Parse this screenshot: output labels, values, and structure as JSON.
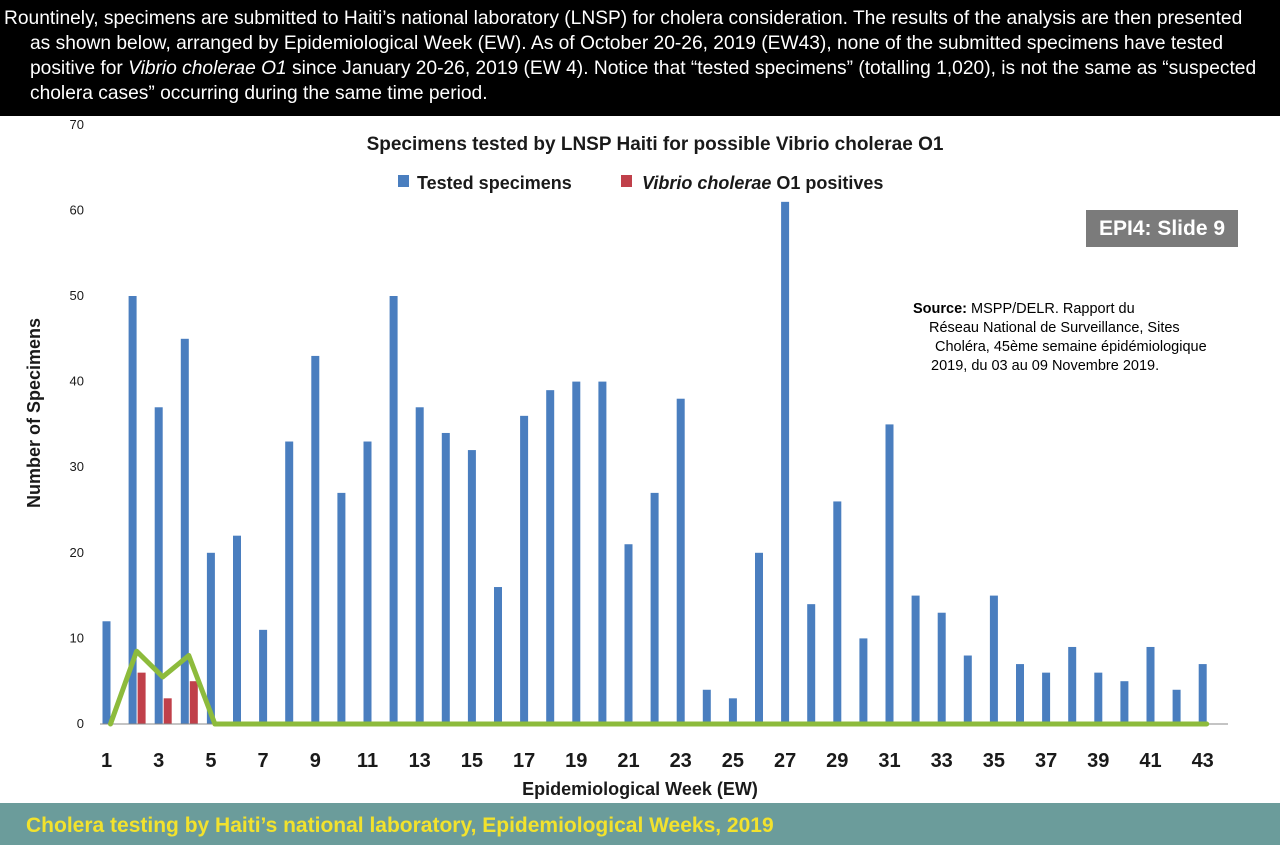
{
  "intro": {
    "part1": "Rountinely, specimens are submitted to Haiti’s national laboratory (LNSP) for cholera consideration. The results of the analysis are then presented as shown below, arranged by Epidemiological Week (EW). As of October 20-26, 2019 (EW43), none of the submitted specimens have tested positive for ",
    "organism": "Vibrio cholerae O1",
    "part2": " since January 20-26, 2019 (EW 4). Notice that “tested specimens” (totalling 1,020), is not the same as “suspected cholera cases” occurring during the same time period."
  },
  "badge": "EPI4: Slide 9",
  "source": {
    "label": "Source:",
    "line1": " MSPP/DELR. Rapport du",
    "line2": "Réseau National de Surveillance, Sites",
    "line3": "Choléra, 45ème semaine épidémiologique",
    "line4": "2019, du 03 au 09 Novembre 2019."
  },
  "footer": "Cholera testing by Haiti’s national laboratory, Epidemiological Weeks, 2019",
  "colors": {
    "tested": "#4a7ebf",
    "positive": "#c0404a",
    "trend": "#8dbb3c",
    "footer_bg": "#6b9c9b",
    "footer_text": "#f2e22d"
  },
  "chart_data": {
    "type": "bar",
    "title": "Specimens tested by LNSP Haiti for possible Vibrio cholerae O1",
    "xlabel": "Epidemiological Week (EW)",
    "ylabel": "Number of Specimens",
    "ylim": [
      0,
      70
    ],
    "yticks": [
      0,
      10,
      20,
      30,
      40,
      50,
      60,
      70
    ],
    "categories": [
      1,
      2,
      3,
      4,
      5,
      6,
      7,
      8,
      9,
      10,
      11,
      12,
      13,
      14,
      15,
      16,
      17,
      18,
      19,
      20,
      21,
      22,
      23,
      24,
      25,
      26,
      27,
      28,
      29,
      30,
      31,
      32,
      33,
      34,
      35,
      36,
      37,
      38,
      39,
      40,
      41,
      42,
      43
    ],
    "xtick_labels": [
      "1",
      "3",
      "5",
      "7",
      "9",
      "11",
      "13",
      "15",
      "17",
      "19",
      "21",
      "23",
      "25",
      "27",
      "29",
      "31",
      "33",
      "35",
      "37",
      "39",
      "41",
      "43"
    ],
    "legend": {
      "tested_label": "Tested specimens",
      "positive_italic": "Vibrio cholerae",
      "positive_suffix": " O1 positives"
    },
    "series": [
      {
        "name": "Tested specimens",
        "values": [
          12,
          50,
          37,
          45,
          20,
          22,
          11,
          33,
          43,
          27,
          33,
          50,
          37,
          34,
          32,
          16,
          36,
          39,
          40,
          40,
          21,
          27,
          38,
          4,
          3,
          20,
          61,
          14,
          26,
          10,
          35,
          15,
          13,
          8,
          15,
          7,
          6,
          9,
          6,
          5,
          9,
          4,
          7
        ]
      },
      {
        "name": "Vibrio cholerae O1 positives",
        "values": [
          0,
          6,
          3,
          5,
          0,
          0,
          0,
          0,
          0,
          0,
          0,
          0,
          0,
          0,
          0,
          0,
          0,
          0,
          0,
          0,
          0,
          0,
          0,
          0,
          0,
          0,
          0,
          0,
          0,
          0,
          0,
          0,
          0,
          0,
          0,
          0,
          0,
          0,
          0,
          0,
          0,
          0,
          0
        ]
      }
    ],
    "trend_line": [
      0,
      8.5,
      5.5,
      8,
      0,
      0,
      0,
      0,
      0,
      0,
      0,
      0,
      0,
      0,
      0,
      0,
      0,
      0,
      0,
      0,
      0,
      0,
      0,
      0,
      0,
      0,
      0,
      0,
      0,
      0,
      0,
      0,
      0,
      0,
      0,
      0,
      0,
      0,
      0,
      0,
      0,
      0,
      0
    ]
  }
}
